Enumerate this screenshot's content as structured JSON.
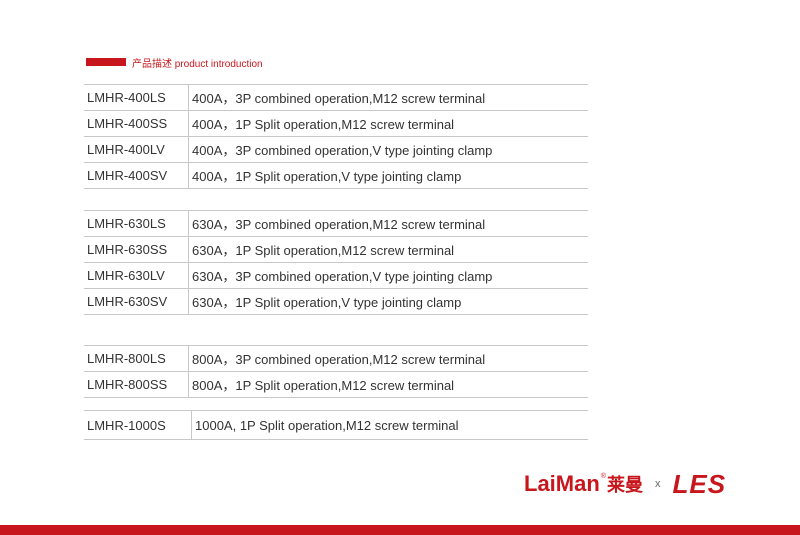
{
  "section": {
    "label": "产品描述 product introduction"
  },
  "tables": [
    {
      "rows": [
        {
          "model": "LMHR-400LS",
          "desc": "400A，3P combined operation,M12 screw terminal"
        },
        {
          "model": "LMHR-400SS",
          "desc": "400A，1P Split operation,M12 screw terminal"
        },
        {
          "model": "LMHR-400LV",
          "desc": "400A，3P combined operation,V type jointing clamp"
        },
        {
          "model": "LMHR-400SV",
          "desc": "400A，1P Split operation,V type jointing clamp"
        }
      ]
    },
    {
      "rows": [
        {
          "model": "LMHR-630LS",
          "desc": "630A，3P combined operation,M12 screw terminal"
        },
        {
          "model": "LMHR-630SS",
          "desc": "630A，1P Split operation,M12 screw terminal"
        },
        {
          "model": "LMHR-630LV",
          "desc": "630A，3P combined operation,V type jointing clamp"
        },
        {
          "model": "LMHR-630SV",
          "desc": "630A，1P Split operation,V type jointing clamp"
        }
      ]
    },
    {
      "rows": [
        {
          "model": "LMHR-800LS",
          "desc": "800A，3P combined operation,M12 screw terminal"
        },
        {
          "model": "LMHR-800SS",
          "desc": "800A，1P Split operation,M12 screw terminal"
        }
      ]
    },
    {
      "rows": [
        {
          "model": "LMHR-1000S",
          "desc": "1000A, 1P Split operation,M12 screw terminal"
        }
      ]
    }
  ],
  "branding": {
    "brand": "LaiMan",
    "reg_mark": "®",
    "brand_cn": "莱曼",
    "separator": "x",
    "partner": "LES"
  },
  "colors": {
    "accent": "#c8161d",
    "border": "#c8c8c8",
    "text": "#333333"
  }
}
